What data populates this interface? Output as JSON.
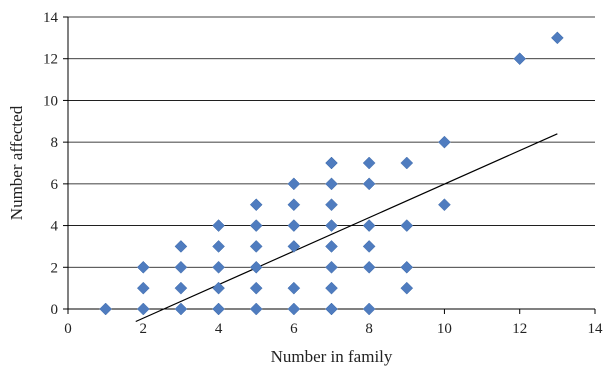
{
  "chart_data": {
    "type": "scatter",
    "xlabel": "Number in family",
    "ylabel": "Number affected",
    "xlim": [
      0,
      14
    ],
    "ylim": [
      0,
      14
    ],
    "xticks": [
      0,
      2,
      4,
      6,
      8,
      10,
      12,
      14
    ],
    "yticks": [
      0,
      2,
      4,
      6,
      8,
      10,
      12,
      14
    ],
    "grid": "horizontal",
    "marker": "diamond",
    "marker_color": "#4F7CBF",
    "trendline_color": "#000000",
    "trendline": {
      "x": [
        1.8,
        13
      ],
      "y": [
        -0.6,
        8.4
      ]
    },
    "points": [
      {
        "x": 1,
        "y": 0
      },
      {
        "x": 2,
        "y": 0
      },
      {
        "x": 2,
        "y": 1
      },
      {
        "x": 2,
        "y": 2
      },
      {
        "x": 3,
        "y": 0
      },
      {
        "x": 3,
        "y": 1
      },
      {
        "x": 3,
        "y": 2
      },
      {
        "x": 3,
        "y": 3
      },
      {
        "x": 4,
        "y": 0
      },
      {
        "x": 4,
        "y": 1
      },
      {
        "x": 4,
        "y": 2
      },
      {
        "x": 4,
        "y": 3
      },
      {
        "x": 4,
        "y": 4
      },
      {
        "x": 5,
        "y": 0
      },
      {
        "x": 5,
        "y": 1
      },
      {
        "x": 5,
        "y": 2
      },
      {
        "x": 5,
        "y": 3
      },
      {
        "x": 5,
        "y": 4
      },
      {
        "x": 5,
        "y": 5
      },
      {
        "x": 6,
        "y": 0
      },
      {
        "x": 6,
        "y": 1
      },
      {
        "x": 6,
        "y": 3
      },
      {
        "x": 6,
        "y": 4
      },
      {
        "x": 6,
        "y": 5
      },
      {
        "x": 6,
        "y": 6
      },
      {
        "x": 7,
        "y": 0
      },
      {
        "x": 7,
        "y": 1
      },
      {
        "x": 7,
        "y": 2
      },
      {
        "x": 7,
        "y": 3
      },
      {
        "x": 7,
        "y": 4
      },
      {
        "x": 7,
        "y": 5
      },
      {
        "x": 7,
        "y": 6
      },
      {
        "x": 7,
        "y": 7
      },
      {
        "x": 8,
        "y": 0
      },
      {
        "x": 8,
        "y": 2
      },
      {
        "x": 8,
        "y": 3
      },
      {
        "x": 8,
        "y": 4
      },
      {
        "x": 8,
        "y": 6
      },
      {
        "x": 8,
        "y": 7
      },
      {
        "x": 9,
        "y": 1
      },
      {
        "x": 9,
        "y": 2
      },
      {
        "x": 9,
        "y": 4
      },
      {
        "x": 9,
        "y": 7
      },
      {
        "x": 10,
        "y": 5
      },
      {
        "x": 10,
        "y": 8
      },
      {
        "x": 12,
        "y": 12
      },
      {
        "x": 13,
        "y": 13
      }
    ]
  }
}
